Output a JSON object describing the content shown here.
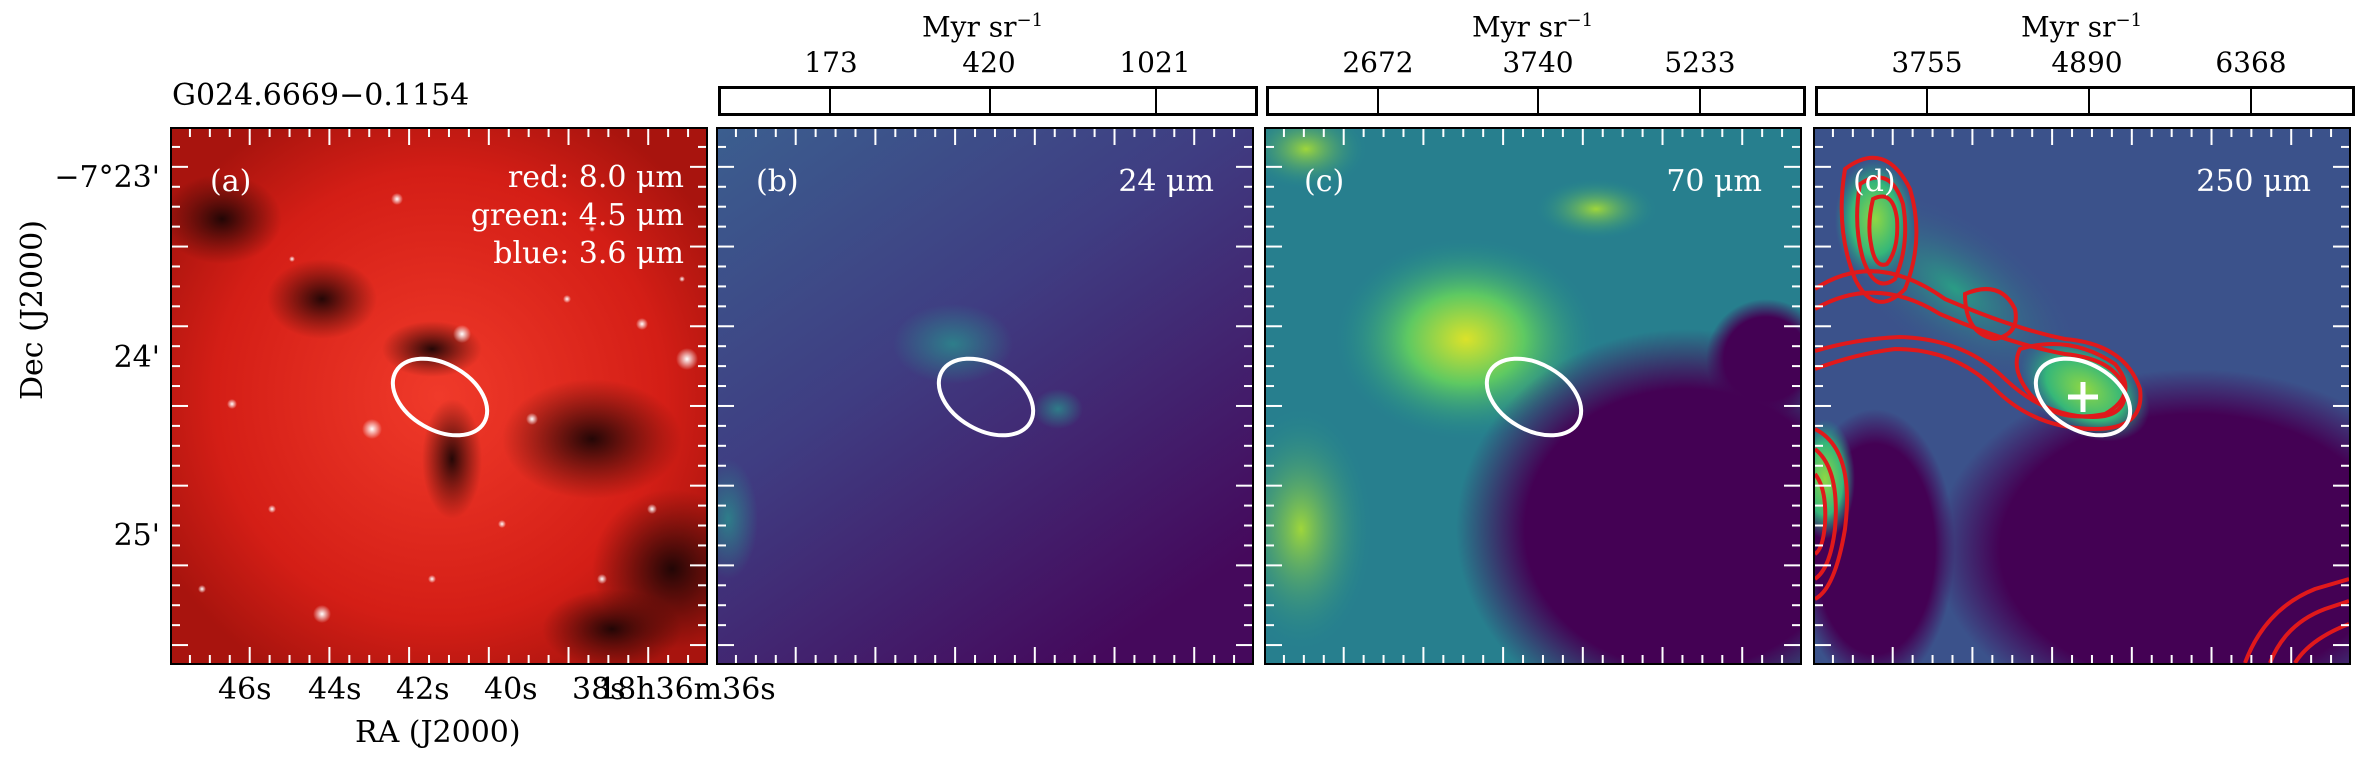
{
  "figure": {
    "source_title": "G024.6669−0.1154",
    "y_axis_label": "Dec (J2000)",
    "x_axis_label": "RA (J2000)",
    "y_ticks": [
      "−7°23'",
      "24'",
      "25'"
    ],
    "x_ticks": [
      "46s",
      "44s",
      "42s",
      "40s",
      "38s",
      "18h36m36s"
    ]
  },
  "panels": [
    {
      "label": "(a)",
      "legend": [
        "red: 8.0 μm",
        "green: 4.5 μm",
        "blue: 3.6 μm"
      ]
    },
    {
      "label": "(b)",
      "wavelength": "24 μm",
      "colorbar": {
        "unit": "Myr sr",
        "unit_exp": "−1",
        "ticks": [
          "173",
          "420",
          "1021"
        ]
      }
    },
    {
      "label": "(c)",
      "wavelength": "70 μm",
      "colorbar": {
        "unit": "Myr sr",
        "unit_exp": "−1",
        "ticks": [
          "2672",
          "3740",
          "5233"
        ]
      }
    },
    {
      "label": "(d)",
      "wavelength": "250 μm",
      "colorbar": {
        "unit": "Myr sr",
        "unit_exp": "−1",
        "ticks": [
          "3755",
          "4890",
          "6368"
        ]
      }
    }
  ],
  "colors": {
    "colormap": [
      "#440154",
      "#3b528b",
      "#21918c",
      "#5ec962",
      "#fde725"
    ],
    "contour": "#e0191b",
    "ellipse": "#ffffff"
  }
}
